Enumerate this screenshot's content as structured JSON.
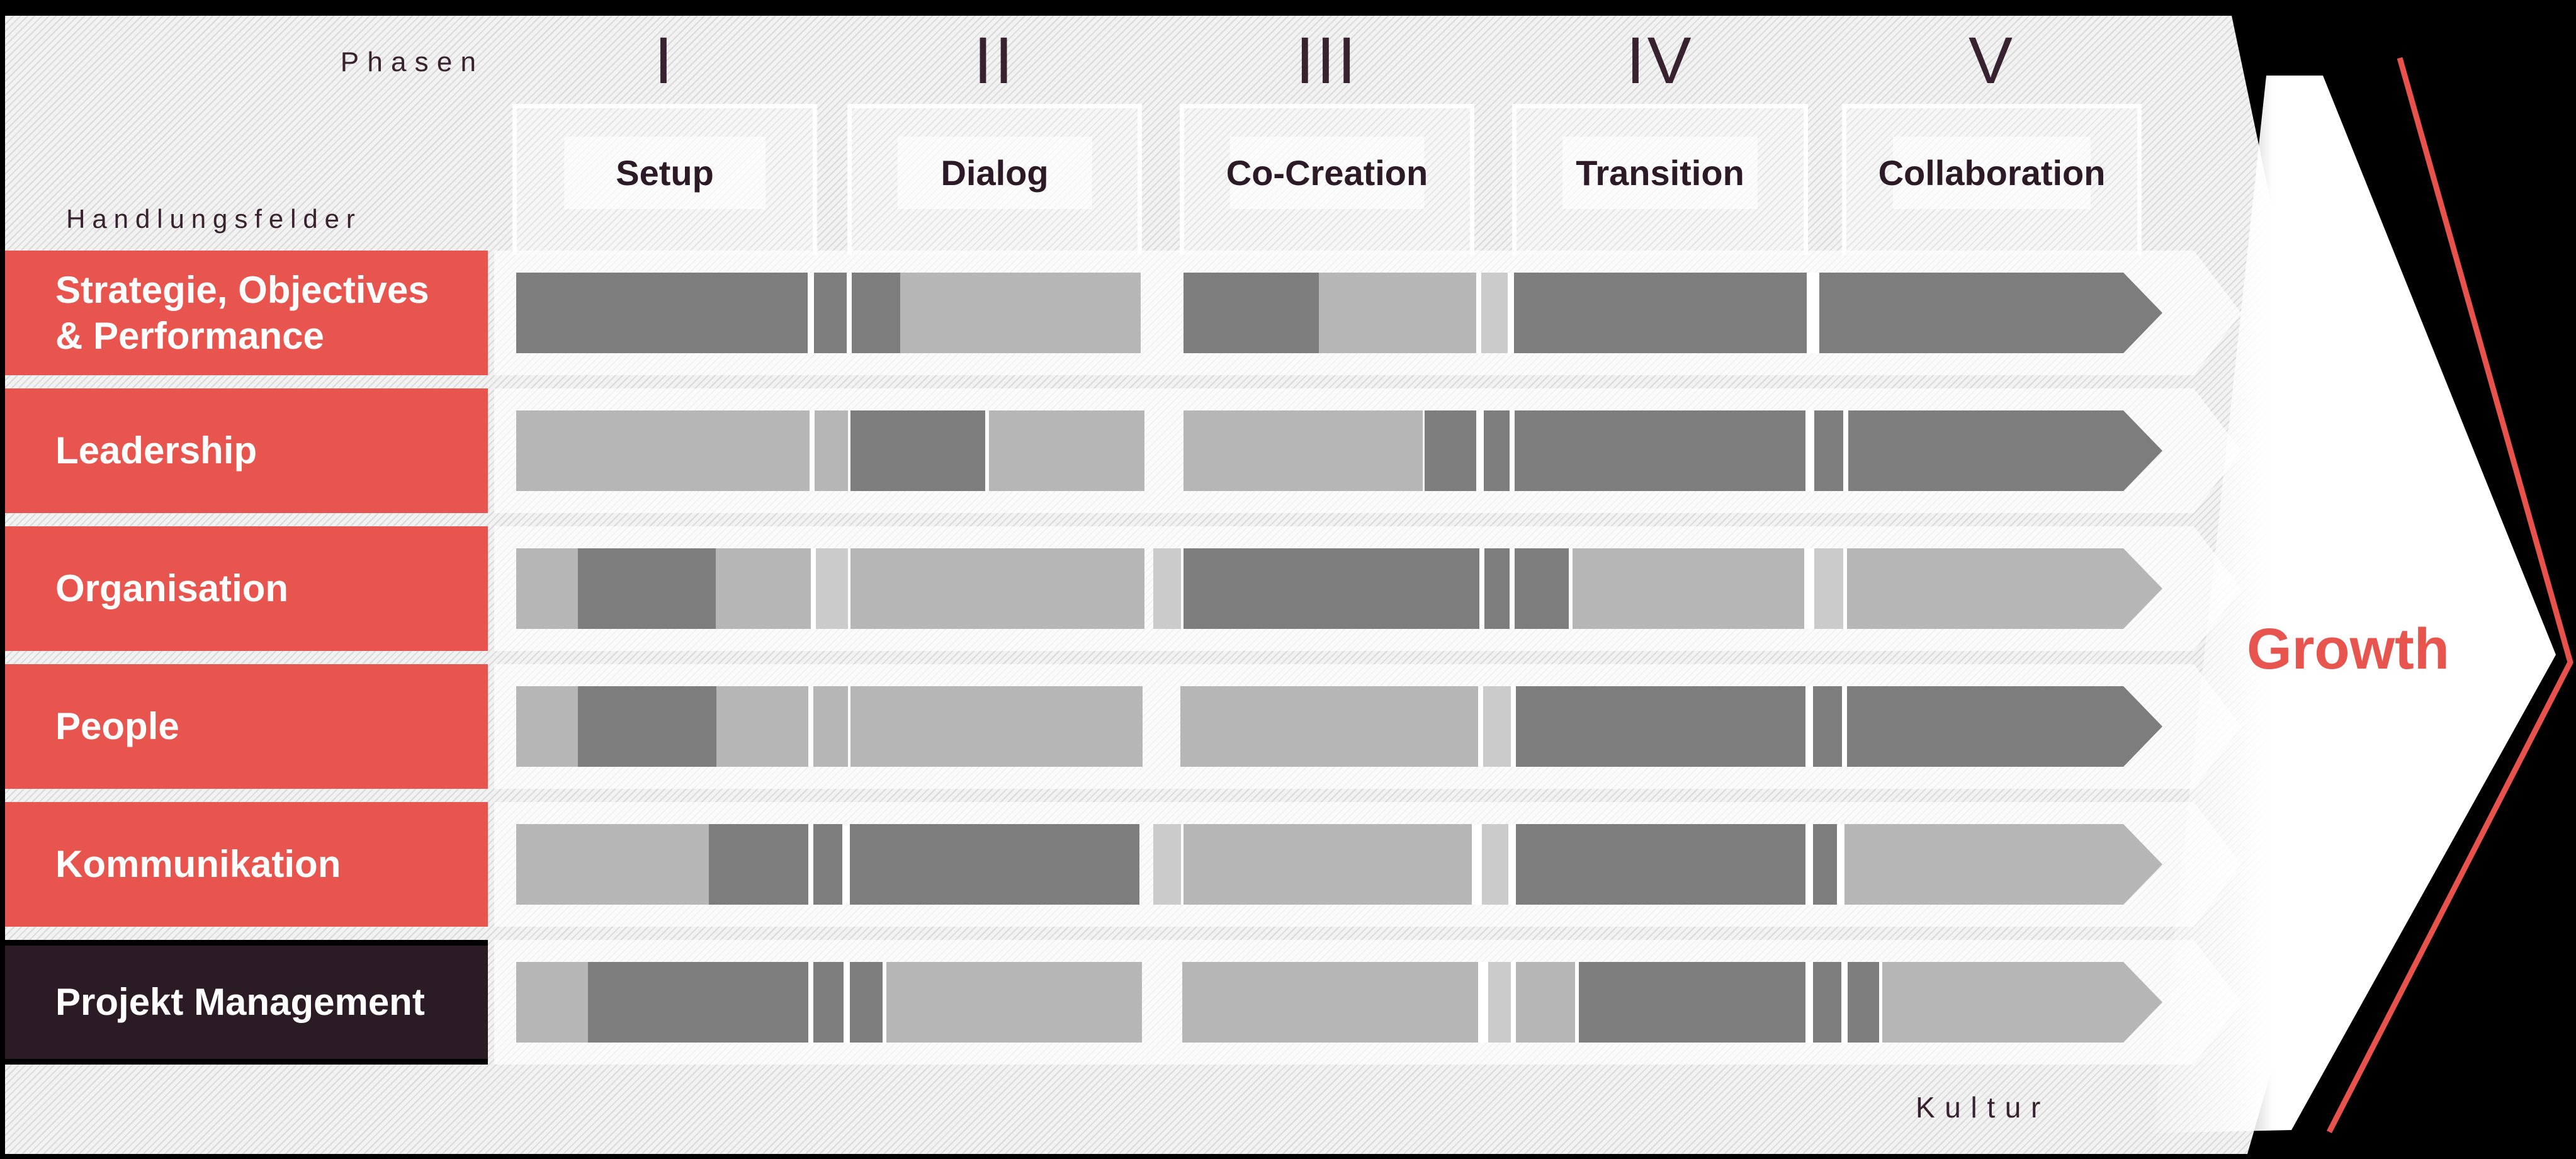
{
  "labels": {
    "phasen": "Phasen",
    "handlungsfelder": "Handlungsfelder",
    "kultur": "Kultur",
    "growth": "Growth"
  },
  "phases": [
    {
      "numeral": "I",
      "label": "Setup"
    },
    {
      "numeral": "II",
      "label": "Dialog"
    },
    {
      "numeral": "III",
      "label": "Co-Creation"
    },
    {
      "numeral": "IV",
      "label": "Transition"
    },
    {
      "numeral": "V",
      "label": "Collaboration"
    }
  ],
  "rows": [
    {
      "label_lines": [
        "Strategie, Objectives",
        "& Performance"
      ],
      "variant": "red",
      "segments": [
        [
          463,
          "d"
        ],
        [
          10,
          "g"
        ],
        [
          52,
          "d"
        ],
        [
          8,
          "g"
        ],
        [
          77,
          "d"
        ],
        [
          382,
          "l"
        ],
        [
          68,
          "t"
        ],
        [
          215,
          "d"
        ],
        [
          250,
          "l"
        ],
        [
          8,
          "g"
        ],
        [
          42,
          "L"
        ],
        [
          10,
          "g"
        ],
        [
          465,
          "d"
        ],
        [
          20,
          "g"
        ]
      ],
      "last": "d"
    },
    {
      "label_lines": [
        "Leadership"
      ],
      "variant": "red",
      "segments": [
        [
          466,
          "l"
        ],
        [
          8,
          "g"
        ],
        [
          53,
          "l"
        ],
        [
          4,
          "g"
        ],
        [
          214,
          "d"
        ],
        [
          6,
          "g"
        ],
        [
          247,
          "l"
        ],
        [
          62,
          "t"
        ],
        [
          380,
          "l"
        ],
        [
          3,
          "g"
        ],
        [
          82,
          "d"
        ],
        [
          12,
          "g"
        ],
        [
          41,
          "d"
        ],
        [
          8,
          "g"
        ],
        [
          462,
          "d"
        ],
        [
          14,
          "g"
        ],
        [
          46,
          "d"
        ],
        [
          8,
          "g"
        ]
      ],
      "last": "d"
    },
    {
      "label_lines": [
        "Organisation"
      ],
      "variant": "red",
      "segments": [
        [
          98,
          "l"
        ],
        [
          219,
          "d"
        ],
        [
          151,
          "l"
        ],
        [
          8,
          "g"
        ],
        [
          51,
          "L"
        ],
        [
          4,
          "g"
        ],
        [
          467,
          "l"
        ],
        [
          14,
          "t"
        ],
        [
          44,
          "L"
        ],
        [
          4,
          "g"
        ],
        [
          470,
          "d"
        ],
        [
          8,
          "g"
        ],
        [
          40,
          "d"
        ],
        [
          8,
          "g"
        ],
        [
          86,
          "d"
        ],
        [
          6,
          "g"
        ],
        [
          368,
          "l"
        ],
        [
          16,
          "g"
        ],
        [
          46,
          "L"
        ],
        [
          6,
          "g"
        ]
      ],
      "last": "l"
    },
    {
      "label_lines": [
        "People"
      ],
      "variant": "red",
      "segments": [
        [
          98,
          "l"
        ],
        [
          220,
          "d"
        ],
        [
          146,
          "l"
        ],
        [
          8,
          "g"
        ],
        [
          55,
          "l"
        ],
        [
          4,
          "g"
        ],
        [
          464,
          "l"
        ],
        [
          60,
          "t"
        ],
        [
          473,
          "l"
        ],
        [
          8,
          "g"
        ],
        [
          44,
          "L"
        ],
        [
          8,
          "g"
        ],
        [
          460,
          "d"
        ],
        [
          12,
          "g"
        ],
        [
          46,
          "d"
        ],
        [
          8,
          "g"
        ]
      ],
      "last": "d"
    },
    {
      "label_lines": [
        "Kommunikation"
      ],
      "variant": "red",
      "segments": [
        [
          306,
          "l"
        ],
        [
          158,
          "d"
        ],
        [
          8,
          "g"
        ],
        [
          46,
          "d"
        ],
        [
          12,
          "g"
        ],
        [
          460,
          "d"
        ],
        [
          22,
          "t"
        ],
        [
          44,
          "L"
        ],
        [
          4,
          "g"
        ],
        [
          458,
          "l"
        ],
        [
          16,
          "g"
        ],
        [
          42,
          "L"
        ],
        [
          12,
          "g"
        ],
        [
          460,
          "d"
        ],
        [
          12,
          "g"
        ],
        [
          38,
          "d"
        ],
        [
          12,
          "g"
        ]
      ],
      "last": "l"
    },
    {
      "label_lines": [
        "Projekt Management"
      ],
      "variant": "dark",
      "segments": [
        [
          114,
          "l"
        ],
        [
          350,
          "d"
        ],
        [
          8,
          "g"
        ],
        [
          48,
          "d"
        ],
        [
          10,
          "g"
        ],
        [
          52,
          "d"
        ],
        [
          6,
          "g"
        ],
        [
          406,
          "l"
        ],
        [
          64,
          "t"
        ],
        [
          470,
          "l"
        ],
        [
          16,
          "g"
        ],
        [
          36,
          "L"
        ],
        [
          8,
          "g"
        ],
        [
          94,
          "l"
        ],
        [
          6,
          "g"
        ],
        [
          360,
          "d"
        ],
        [
          12,
          "g"
        ],
        [
          45,
          "d"
        ],
        [
          10,
          "g"
        ],
        [
          50,
          "d"
        ],
        [
          5,
          "g"
        ]
      ],
      "last": "l"
    }
  ],
  "colors": {
    "d": "#7d7d7d",
    "l": "#b6b6b6",
    "L": "#cbcbcb",
    "g": "#ffffff",
    "t": "transparent",
    "accent_red": "#e8544e",
    "maroon": "#38222f",
    "row_red": "#e8544e",
    "row_dark": "#2a1b24",
    "background": "#000000"
  }
}
